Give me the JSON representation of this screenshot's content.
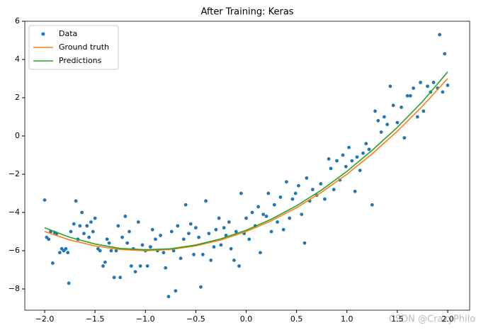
{
  "chart_data": {
    "type": "scatter",
    "title": "After Training: Keras",
    "xlim": [
      -2.197,
      2.218
    ],
    "ylim": [
      -9.11,
      6
    ],
    "xticks": [
      {
        "value": -2,
        "label": "−2.0"
      },
      {
        "value": -1.5,
        "label": "−1.5"
      },
      {
        "value": -1,
        "label": "−1.0"
      },
      {
        "value": -0.5,
        "label": "−0.5"
      },
      {
        "value": 0,
        "label": "0.0"
      },
      {
        "value": 0.5,
        "label": "0.5"
      },
      {
        "value": 1,
        "label": "1.0"
      },
      {
        "value": 1.5,
        "label": "1.5"
      },
      {
        "value": 2,
        "label": "2.0"
      }
    ],
    "yticks": [
      {
        "value": -8,
        "label": "−8"
      },
      {
        "value": -6,
        "label": "−6"
      },
      {
        "value": -4,
        "label": "−4"
      },
      {
        "value": -2,
        "label": "−2"
      },
      0,
      2,
      4,
      6
    ],
    "legend": "upper left",
    "annotation": "CSDN @CrazyPhilo",
    "series": [
      {
        "name": "Data",
        "type": "scatter",
        "color": "#1f77b4",
        "x": [
          -2.0,
          -1.98,
          -1.96,
          -1.94,
          -1.92,
          -1.9,
          -1.88,
          -1.85,
          -1.83,
          -1.81,
          -1.79,
          -1.77,
          -1.76,
          -1.74,
          -1.71,
          -1.69,
          -1.67,
          -1.65,
          -1.63,
          -1.61,
          -1.58,
          -1.56,
          -1.54,
          -1.52,
          -1.5,
          -1.47,
          -1.45,
          -1.42,
          -1.4,
          -1.38,
          -1.36,
          -1.34,
          -1.31,
          -1.29,
          -1.27,
          -1.25,
          -1.23,
          -1.2,
          -1.18,
          -1.16,
          -1.14,
          -1.12,
          -1.1,
          -1.07,
          -1.05,
          -1.03,
          -1.0,
          -0.98,
          -0.95,
          -0.93,
          -0.9,
          -0.88,
          -0.85,
          -0.82,
          -0.8,
          -0.77,
          -0.74,
          -0.72,
          -0.7,
          -0.68,
          -0.65,
          -0.62,
          -0.6,
          -0.57,
          -0.55,
          -0.52,
          -0.5,
          -0.47,
          -0.45,
          -0.43,
          -0.4,
          -0.37,
          -0.35,
          -0.32,
          -0.3,
          -0.27,
          -0.25,
          -0.22,
          -0.2,
          -0.17,
          -0.15,
          -0.12,
          -0.1,
          -0.07,
          -0.05,
          -0.02,
          0.0,
          0.03,
          0.06,
          0.09,
          0.12,
          0.14,
          0.17,
          0.2,
          0.22,
          0.25,
          0.28,
          0.31,
          0.34,
          0.37,
          0.4,
          0.43,
          0.46,
          0.49,
          0.52,
          0.55,
          0.58,
          0.6,
          0.63,
          0.66,
          0.7,
          0.74,
          0.78,
          0.82,
          0.84,
          0.87,
          0.9,
          0.93,
          0.96,
          0.99,
          1.02,
          1.05,
          1.08,
          1.1,
          1.13,
          1.16,
          1.19,
          1.22,
          1.25,
          1.28,
          1.31,
          1.34,
          1.37,
          1.4,
          1.43,
          1.46,
          1.5,
          1.54,
          1.57,
          1.6,
          1.63,
          1.66,
          1.7,
          1.73,
          1.76,
          1.8,
          1.83,
          1.86,
          1.9,
          1.92,
          1.95,
          1.97,
          2.0
        ],
        "values": [
          -3.35,
          -5.3,
          -5.4,
          -5.0,
          -6.65,
          -5.05,
          -5.1,
          -6.1,
          -5.9,
          -6.0,
          -5.9,
          -6.1,
          -7.7,
          -5.0,
          -4.6,
          -3.4,
          -5.4,
          -4.7,
          -4.0,
          -5.1,
          -4.7,
          -5.3,
          -4.5,
          -5.0,
          -4.3,
          -5.9,
          -6.0,
          -6.8,
          -6.6,
          -5.4,
          -5.6,
          -6.0,
          -7.4,
          -6.0,
          -4.7,
          -7.4,
          -5.3,
          -4.2,
          -5.6,
          -5.0,
          -6.8,
          -5.9,
          -7.1,
          -4.5,
          -6.8,
          -5.7,
          -6.0,
          -6.8,
          -5.8,
          -4.9,
          -5.4,
          -6.0,
          -5.2,
          -6.1,
          -6.9,
          -8.4,
          -5.0,
          -6.0,
          -8.1,
          -4.7,
          -6.4,
          -5.4,
          -3.6,
          -5.1,
          -4.6,
          -6.2,
          -4.8,
          -5.3,
          -7.9,
          -6.2,
          -3.4,
          -5.1,
          -6.5,
          -5.8,
          -4.9,
          -4.3,
          -5.7,
          -4.8,
          -5.2,
          -4.5,
          -5.9,
          -6.5,
          -5.0,
          -6.8,
          -3.0,
          -5.1,
          -4.3,
          -5.4,
          -4.0,
          -4.7,
          -3.7,
          -6.1,
          -4.1,
          -4.2,
          -3.0,
          -5.0,
          -3.6,
          -4.5,
          -3.2,
          -4.9,
          -2.4,
          -4.3,
          -3.3,
          -3.0,
          -2.6,
          -4.1,
          -5.6,
          -2.2,
          -3.4,
          -2.8,
          -3.1,
          -2.5,
          -3.3,
          -1.2,
          -1.7,
          -2.8,
          -1.3,
          -2.3,
          -1.0,
          -1.6,
          -0.6,
          -1.3,
          -2.9,
          -1.1,
          -1.8,
          -0.9,
          -0.4,
          -0.7,
          -3.6,
          1.3,
          0.8,
          0.2,
          1.0,
          0.6,
          2.6,
          1.6,
          0.7,
          1.5,
          -0.1,
          2.1,
          2.1,
          2.5,
          1.0,
          2.8,
          1.3,
          2.6,
          2.3,
          2.8,
          2.5,
          5.3,
          2.3,
          4.3,
          2.65
        ]
      },
      {
        "name": "Ground truth",
        "type": "line",
        "color": "#ff7f0e",
        "x": [
          -2,
          -1.75,
          -1.5,
          -1.25,
          -1,
          -0.75,
          -0.5,
          -0.25,
          0,
          0.25,
          0.5,
          0.75,
          1,
          1.25,
          1.5,
          1.75,
          2
        ],
        "values": [
          -5,
          -5.4375,
          -5.75,
          -5.9375,
          -6,
          -5.9375,
          -5.75,
          -5.4375,
          -5,
          -4.4375,
          -3.75,
          -2.9375,
          -2,
          -0.9375,
          0.25,
          1.5625,
          3
        ]
      },
      {
        "name": "Predictions",
        "type": "line",
        "color": "#2ca02c",
        "x": [
          -2,
          -1.75,
          -1.5,
          -1.25,
          -1,
          -0.75,
          -0.5,
          -0.25,
          0,
          0.25,
          0.5,
          0.75,
          1,
          1.25,
          1.5,
          1.75,
          2
        ],
        "values": [
          -4.8,
          -5.3,
          -5.65,
          -5.88,
          -5.95,
          -5.9,
          -5.7,
          -5.38,
          -4.93,
          -4.35,
          -3.65,
          -2.82,
          -1.85,
          -0.75,
          0.45,
          1.8,
          3.35
        ]
      }
    ]
  }
}
